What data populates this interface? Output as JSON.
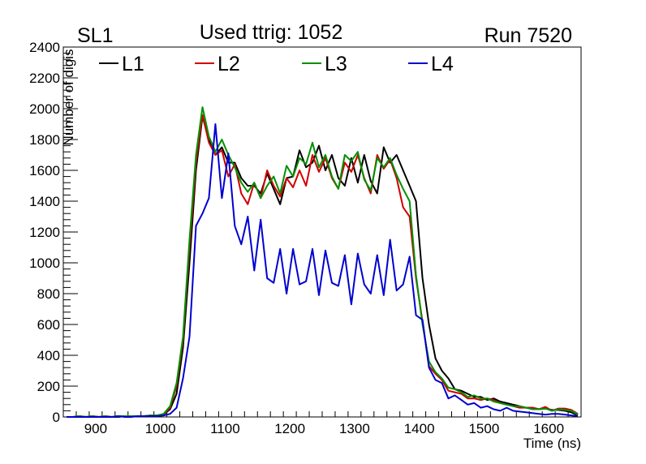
{
  "chart_data": {
    "type": "line",
    "title_left": "SL1",
    "title_center": "Used ttrig: 1052",
    "title_right": "Run 7520",
    "xlabel": "Time (ns)",
    "ylabel": "Number of digis",
    "xlim": [
      850,
      1650
    ],
    "ylim": [
      0,
      2400
    ],
    "xticks": [
      900,
      1000,
      1100,
      1200,
      1300,
      1400,
      1500,
      1600
    ],
    "yticks": [
      0,
      200,
      400,
      600,
      800,
      1000,
      1200,
      1400,
      1600,
      1800,
      2000,
      2200,
      2400
    ],
    "legend_placement": "top",
    "bin_start": 855,
    "bin_width": 10,
    "series": [
      {
        "name": "L1",
        "color": "#000000",
        "values": [
          0,
          0,
          5,
          0,
          5,
          0,
          5,
          0,
          0,
          5,
          5,
          5,
          5,
          10,
          10,
          15,
          50,
          150,
          450,
          1000,
          1600,
          1950,
          1800,
          1700,
          1750,
          1650,
          1650,
          1550,
          1500,
          1500,
          1450,
          1580,
          1480,
          1380,
          1550,
          1560,
          1730,
          1620,
          1650,
          1760,
          1600,
          1700,
          1550,
          1500,
          1680,
          1520,
          1700,
          1530,
          1450,
          1750,
          1650,
          1700,
          1600,
          1500,
          1400,
          900,
          600,
          380,
          300,
          250,
          180,
          170,
          150,
          130,
          130,
          110,
          120,
          100,
          90,
          80,
          70,
          60,
          60,
          50,
          55,
          45,
          45,
          40,
          30,
          10
        ]
      },
      {
        "name": "L2",
        "color": "#d00000",
        "values": [
          0,
          0,
          5,
          0,
          5,
          0,
          5,
          0,
          5,
          5,
          5,
          5,
          5,
          10,
          10,
          15,
          60,
          200,
          500,
          1100,
          1650,
          1960,
          1780,
          1700,
          1730,
          1560,
          1640,
          1450,
          1380,
          1520,
          1420,
          1600,
          1500,
          1430,
          1550,
          1490,
          1600,
          1500,
          1700,
          1590,
          1680,
          1550,
          1480,
          1650,
          1590,
          1700,
          1550,
          1450,
          1700,
          1610,
          1670,
          1550,
          1360,
          1300,
          900,
          620,
          330,
          280,
          240,
          170,
          160,
          150,
          120,
          120,
          110,
          120,
          110,
          90,
          80,
          70,
          60,
          60,
          60,
          50,
          65,
          40,
          55,
          55,
          45,
          20
        ]
      },
      {
        "name": "L3",
        "color": "#009000",
        "values": [
          0,
          0,
          5,
          0,
          5,
          0,
          5,
          0,
          5,
          5,
          5,
          5,
          5,
          10,
          10,
          20,
          70,
          220,
          520,
          1150,
          1700,
          2010,
          1820,
          1720,
          1800,
          1700,
          1620,
          1520,
          1460,
          1520,
          1420,
          1500,
          1560,
          1450,
          1630,
          1560,
          1680,
          1640,
          1780,
          1620,
          1700,
          1560,
          1480,
          1700,
          1660,
          1720,
          1540,
          1470,
          1680,
          1620,
          1680,
          1570,
          1480,
          1400,
          920,
          600,
          360,
          290,
          250,
          190,
          180,
          160,
          130,
          140,
          120,
          120,
          100,
          90,
          80,
          70,
          70,
          60,
          50,
          50,
          55,
          40,
          50,
          45,
          40,
          15
        ]
      },
      {
        "name": "L4",
        "color": "#0000d0",
        "values": [
          0,
          0,
          0,
          0,
          0,
          0,
          0,
          0,
          5,
          0,
          0,
          5,
          5,
          5,
          5,
          10,
          20,
          60,
          250,
          520,
          1240,
          1320,
          1420,
          1900,
          1420,
          1710,
          1240,
          1120,
          1300,
          950,
          1280,
          900,
          870,
          1090,
          800,
          1090,
          860,
          880,
          1090,
          790,
          1080,
          870,
          850,
          1050,
          730,
          1060,
          860,
          800,
          1050,
          790,
          1150,
          820,
          860,
          1040,
          660,
          630,
          320,
          240,
          220,
          120,
          140,
          110,
          80,
          90,
          60,
          70,
          50,
          40,
          60,
          40,
          35,
          30,
          25,
          20,
          15,
          20,
          20,
          15,
          10,
          5
        ]
      }
    ]
  }
}
